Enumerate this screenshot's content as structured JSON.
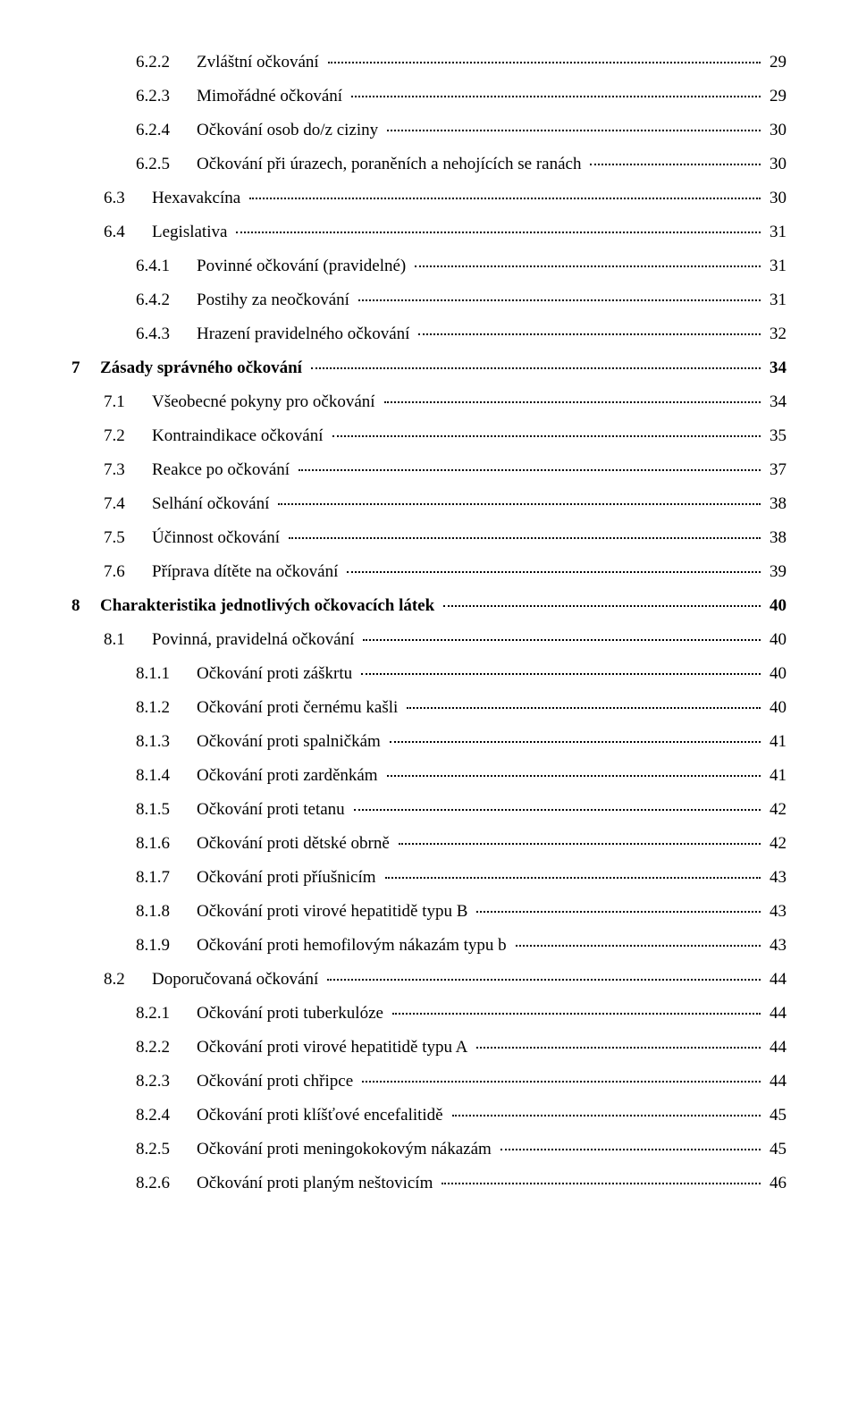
{
  "toc": [
    {
      "level": 2,
      "num": "6.2.2",
      "title": "Zvláštní očkování",
      "page": "29"
    },
    {
      "level": 2,
      "num": "6.2.3",
      "title": "Mimořádné očkování",
      "page": "29"
    },
    {
      "level": 2,
      "num": "6.2.4",
      "title": "Očkování osob do/z ciziny",
      "page": "30"
    },
    {
      "level": 2,
      "num": "6.2.5",
      "title": "Očkování při úrazech, poraněních a nehojících se ranách",
      "page": "30"
    },
    {
      "level": 1,
      "num": "6.3",
      "title": "Hexavakcína",
      "page": "30"
    },
    {
      "level": 1,
      "num": "6.4",
      "title": "Legislativa",
      "page": "31"
    },
    {
      "level": 2,
      "num": "6.4.1",
      "title": "Povinné očkování (pravidelné)",
      "page": "31"
    },
    {
      "level": 2,
      "num": "6.4.2",
      "title": "Postihy za neočkování",
      "page": "31"
    },
    {
      "level": 2,
      "num": "6.4.3",
      "title": "Hrazení pravidelného očkování",
      "page": "32"
    },
    {
      "level": 0,
      "num": "7",
      "title": "Zásady správného očkování",
      "page": "34"
    },
    {
      "level": 1,
      "num": "7.1",
      "title": "Všeobecné pokyny pro očkování",
      "page": "34"
    },
    {
      "level": 1,
      "num": "7.2",
      "title": "Kontraindikace očkování",
      "page": "35"
    },
    {
      "level": 1,
      "num": "7.3",
      "title": "Reakce po očkování",
      "page": "37"
    },
    {
      "level": 1,
      "num": "7.4",
      "title": "Selhání očkování",
      "page": "38"
    },
    {
      "level": 1,
      "num": "7.5",
      "title": "Účinnost očkování",
      "page": "38"
    },
    {
      "level": 1,
      "num": "7.6",
      "title": "Příprava dítěte na očkování",
      "page": "39"
    },
    {
      "level": 0,
      "num": "8",
      "title": "Charakteristika jednotlivých očkovacích látek",
      "page": "40"
    },
    {
      "level": 1,
      "num": "8.1",
      "title": "Povinná, pravidelná očkování",
      "page": "40"
    },
    {
      "level": 2,
      "num": "8.1.1",
      "title": "Očkování proti záškrtu",
      "page": "40"
    },
    {
      "level": 2,
      "num": "8.1.2",
      "title": "Očkování proti černému kašli",
      "page": "40"
    },
    {
      "level": 2,
      "num": "8.1.3",
      "title": "Očkování proti spalničkám",
      "page": "41"
    },
    {
      "level": 2,
      "num": "8.1.4",
      "title": "Očkování proti zarděnkám",
      "page": "41"
    },
    {
      "level": 2,
      "num": "8.1.5",
      "title": "Očkování proti tetanu",
      "page": "42"
    },
    {
      "level": 2,
      "num": "8.1.6",
      "title": "Očkování proti dětské obrně",
      "page": "42"
    },
    {
      "level": 2,
      "num": "8.1.7",
      "title": "Očkování proti příušnicím",
      "page": "43"
    },
    {
      "level": 2,
      "num": "8.1.8",
      "title": "Očkování proti virové hepatitidě typu B",
      "page": "43"
    },
    {
      "level": 2,
      "num": "8.1.9",
      "title": "Očkování proti hemofilovým nákazám typu b",
      "page": "43"
    },
    {
      "level": 1,
      "num": "8.2",
      "title": "Doporučovaná očkování",
      "page": "44"
    },
    {
      "level": 2,
      "num": "8.2.1",
      "title": "Očkování proti tuberkulóze",
      "page": "44"
    },
    {
      "level": 2,
      "num": "8.2.2",
      "title": "Očkování proti virové hepatitidě typu A",
      "page": "44"
    },
    {
      "level": 2,
      "num": "8.2.3",
      "title": "Očkování proti chřipce",
      "page": "44"
    },
    {
      "level": 2,
      "num": "8.2.4",
      "title": "Očkování proti klíšťové encefalitidě",
      "page": "45"
    },
    {
      "level": 2,
      "num": "8.2.5",
      "title": "Očkování proti meningokokovým nákazám",
      "page": "45"
    },
    {
      "level": 2,
      "num": "8.2.6",
      "title": "Očkování proti planým neštovicím",
      "page": "46"
    }
  ]
}
